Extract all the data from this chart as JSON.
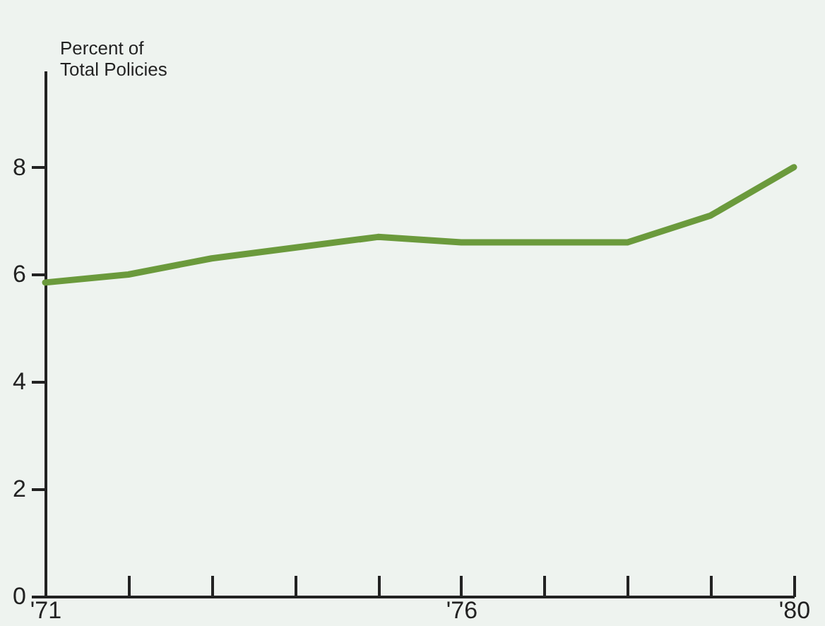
{
  "chart_data": {
    "type": "line",
    "ylabel": "Percent of\nTotal Policies",
    "x": [
      1971,
      1972,
      1973,
      1974,
      1975,
      1976,
      1977,
      1978,
      1979,
      1980
    ],
    "series": [
      {
        "color": "#6b9a3c",
        "values": [
          5.85,
          6.0,
          6.3,
          6.5,
          6.7,
          6.6,
          6.6,
          6.6,
          7.1,
          8.0
        ]
      }
    ],
    "xlim": [
      1971,
      1980
    ],
    "ylim": [
      0,
      9.8
    ],
    "xticks": [
      {
        "value": 1971,
        "label": "'71"
      },
      {
        "value": 1972,
        "label": null
      },
      {
        "value": 1973,
        "label": null
      },
      {
        "value": 1974,
        "label": null
      },
      {
        "value": 1975,
        "label": null
      },
      {
        "value": 1976,
        "label": "'76"
      },
      {
        "value": 1977,
        "label": null
      },
      {
        "value": 1978,
        "label": null
      },
      {
        "value": 1979,
        "label": null
      },
      {
        "value": 1980,
        "label": "'80"
      }
    ],
    "yticks": [
      0,
      2,
      4,
      6,
      8
    ],
    "grid": false,
    "legend": false,
    "marker": "none",
    "line_style": "solid"
  }
}
